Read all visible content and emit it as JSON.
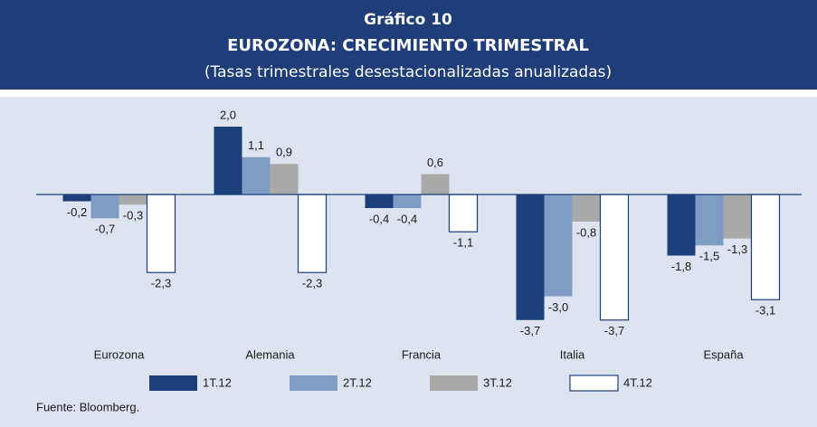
{
  "chart_data": {
    "type": "bar",
    "header": "Gráfico 10",
    "title": "EUROZONA: CRECIMIENTO TRIMESTRAL",
    "subtitle": "(Tasas trimestrales desestacionalizadas anualizadas)",
    "source": "Fuente: Bloomberg.",
    "categories": [
      "Eurozona",
      "Alemania",
      "Francia",
      "Italia",
      "España"
    ],
    "ylim": [
      -4,
      2.5
    ],
    "series": [
      {
        "name": "1T.12",
        "color": "#1b3f7a",
        "values": [
          -0.2,
          2.0,
          -0.4,
          -3.7,
          -1.8
        ],
        "value_labels": [
          "-0,2",
          "2,0",
          "-0,4",
          "-3,7",
          "-1,8"
        ]
      },
      {
        "name": "2T.12",
        "color": "#7f9cc5",
        "values": [
          -0.7,
          1.1,
          -0.4,
          -3.0,
          -1.5
        ],
        "value_labels": [
          "-0,7",
          "1,1",
          "-0,4",
          "-3,0",
          "-1,5"
        ]
      },
      {
        "name": "3T.12",
        "color": "#a9a9a9",
        "values": [
          -0.3,
          0.9,
          0.6,
          -0.8,
          -1.3
        ],
        "value_labels": [
          "-0,3",
          "0,9",
          "0,6",
          "-0,8",
          "-1,3"
        ]
      },
      {
        "name": "4T.12",
        "color": "#ffffff",
        "values": [
          -2.3,
          -2.3,
          -1.1,
          -3.7,
          -3.1
        ],
        "value_labels": [
          "-2,3",
          "-2,3",
          "-1,1",
          "-3,7",
          "-3,1"
        ]
      }
    ]
  }
}
